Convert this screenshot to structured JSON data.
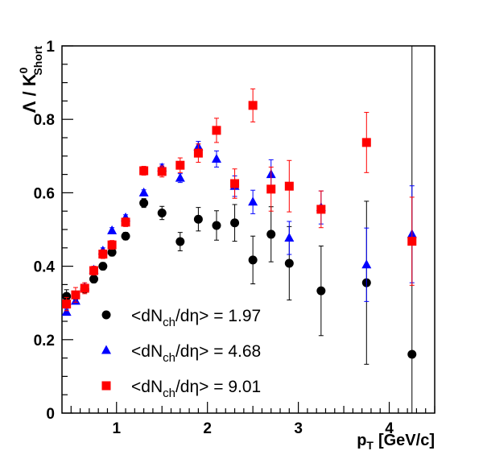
{
  "chart_data": {
    "type": "scatter",
    "xlabel": "p",
    "xlabel_sub": "T",
    "xlabel_unit": "[GeV/c]",
    "ylabel": "Λ / K",
    "ylabel_sup": "0",
    "ylabel_sub": "Short",
    "xlim": [
      0.4,
      4.5
    ],
    "ylim": [
      0,
      1
    ],
    "x_ticks": [
      {
        "value": 1,
        "label": "1"
      },
      {
        "value": 2,
        "label": "2"
      },
      {
        "value": 3,
        "label": "3"
      },
      {
        "value": 4,
        "label": "4"
      }
    ],
    "y_ticks": [
      {
        "value": 0,
        "label": "0"
      },
      {
        "value": 0.2,
        "label": "0.2"
      },
      {
        "value": 0.4,
        "label": "0.4"
      },
      {
        "value": 0.6,
        "label": "0.6"
      },
      {
        "value": 0.8,
        "label": "0.8"
      },
      {
        "value": 1,
        "label": "1"
      }
    ],
    "grid": false,
    "legend_position": "bottom-left",
    "series": [
      {
        "name": "<dN_ch/dη> = 1.97",
        "legend_prefix": "<dN",
        "legend_sub": "ch",
        "legend_suffix": "/dη> = 1.97",
        "marker": "circle",
        "color": "#000000",
        "points": [
          {
            "x": 0.45,
            "y": 0.318,
            "err": 0.018
          },
          {
            "x": 0.55,
            "y": 0.32,
            "err": 0.012
          },
          {
            "x": 0.65,
            "y": 0.338,
            "err": 0.01
          },
          {
            "x": 0.75,
            "y": 0.365,
            "err": 0.01
          },
          {
            "x": 0.85,
            "y": 0.4,
            "err": 0.01
          },
          {
            "x": 0.95,
            "y": 0.438,
            "err": 0.01
          },
          {
            "x": 1.1,
            "y": 0.482,
            "err": 0.01
          },
          {
            "x": 1.3,
            "y": 0.572,
            "err": 0.012
          },
          {
            "x": 1.5,
            "y": 0.545,
            "err": 0.018
          },
          {
            "x": 1.7,
            "y": 0.467,
            "err": 0.025
          },
          {
            "x": 1.9,
            "y": 0.528,
            "err": 0.032
          },
          {
            "x": 2.1,
            "y": 0.511,
            "err": 0.04
          },
          {
            "x": 2.3,
            "y": 0.518,
            "err": 0.05
          },
          {
            "x": 2.5,
            "y": 0.417,
            "err": 0.065
          },
          {
            "x": 2.7,
            "y": 0.487,
            "err": 0.075
          },
          {
            "x": 2.9,
            "y": 0.408,
            "err": 0.1
          },
          {
            "x": 3.25,
            "y": 0.333,
            "err": 0.122
          },
          {
            "x": 3.75,
            "y": 0.355,
            "err": 0.222
          },
          {
            "x": 4.25,
            "y": 0.16,
            "err": 0.84
          }
        ]
      },
      {
        "name": "<dN_ch/dη> = 4.68",
        "legend_prefix": "<dN",
        "legend_sub": "ch",
        "legend_suffix": "/dη> = 4.68",
        "marker": "triangle",
        "color": "#0000ff",
        "points": [
          {
            "x": 0.45,
            "y": 0.275,
            "err": 0.008
          },
          {
            "x": 0.55,
            "y": 0.305,
            "err": 0.008
          },
          {
            "x": 0.65,
            "y": 0.343,
            "err": 0.008
          },
          {
            "x": 0.75,
            "y": 0.39,
            "err": 0.008
          },
          {
            "x": 0.85,
            "y": 0.442,
            "err": 0.008
          },
          {
            "x": 0.95,
            "y": 0.497,
            "err": 0.008
          },
          {
            "x": 1.1,
            "y": 0.532,
            "err": 0.008
          },
          {
            "x": 1.3,
            "y": 0.6,
            "err": 0.008
          },
          {
            "x": 1.5,
            "y": 0.668,
            "err": 0.01
          },
          {
            "x": 1.7,
            "y": 0.64,
            "err": 0.012
          },
          {
            "x": 1.9,
            "y": 0.725,
            "err": 0.015
          },
          {
            "x": 2.1,
            "y": 0.692,
            "err": 0.022
          },
          {
            "x": 2.3,
            "y": 0.618,
            "err": 0.028
          },
          {
            "x": 2.5,
            "y": 0.575,
            "err": 0.032
          },
          {
            "x": 2.7,
            "y": 0.65,
            "err": 0.04
          },
          {
            "x": 2.9,
            "y": 0.477,
            "err": 0.045
          },
          {
            "x": 3.25,
            "y": 0.56,
            "err": 0.045
          },
          {
            "x": 3.75,
            "y": 0.404,
            "err": 0.1
          },
          {
            "x": 4.25,
            "y": 0.487,
            "err": 0.132
          }
        ]
      },
      {
        "name": "<dN_ch/dη> = 9.01",
        "legend_prefix": "<dN",
        "legend_sub": "ch",
        "legend_suffix": "/dη> = 9.01",
        "marker": "square",
        "color": "#ff0000",
        "points": [
          {
            "x": 0.45,
            "y": 0.297,
            "err": 0.018
          },
          {
            "x": 0.55,
            "y": 0.322,
            "err": 0.02
          },
          {
            "x": 0.65,
            "y": 0.34,
            "err": 0.015
          },
          {
            "x": 0.75,
            "y": 0.388,
            "err": 0.012
          },
          {
            "x": 0.85,
            "y": 0.433,
            "err": 0.012
          },
          {
            "x": 0.95,
            "y": 0.458,
            "err": 0.012
          },
          {
            "x": 1.1,
            "y": 0.52,
            "err": 0.012
          },
          {
            "x": 1.3,
            "y": 0.66,
            "err": 0.012
          },
          {
            "x": 1.5,
            "y": 0.658,
            "err": 0.015
          },
          {
            "x": 1.7,
            "y": 0.675,
            "err": 0.02
          },
          {
            "x": 1.9,
            "y": 0.708,
            "err": 0.025
          },
          {
            "x": 2.1,
            "y": 0.77,
            "err": 0.033
          },
          {
            "x": 2.3,
            "y": 0.625,
            "err": 0.04
          },
          {
            "x": 2.5,
            "y": 0.838,
            "err": 0.045
          },
          {
            "x": 2.7,
            "y": 0.61,
            "err": 0.06
          },
          {
            "x": 2.9,
            "y": 0.618,
            "err": 0.07
          },
          {
            "x": 3.25,
            "y": 0.555,
            "err": 0.05
          },
          {
            "x": 3.75,
            "y": 0.737,
            "err": 0.082
          },
          {
            "x": 4.25,
            "y": 0.468,
            "err": 0.12
          }
        ]
      }
    ]
  }
}
